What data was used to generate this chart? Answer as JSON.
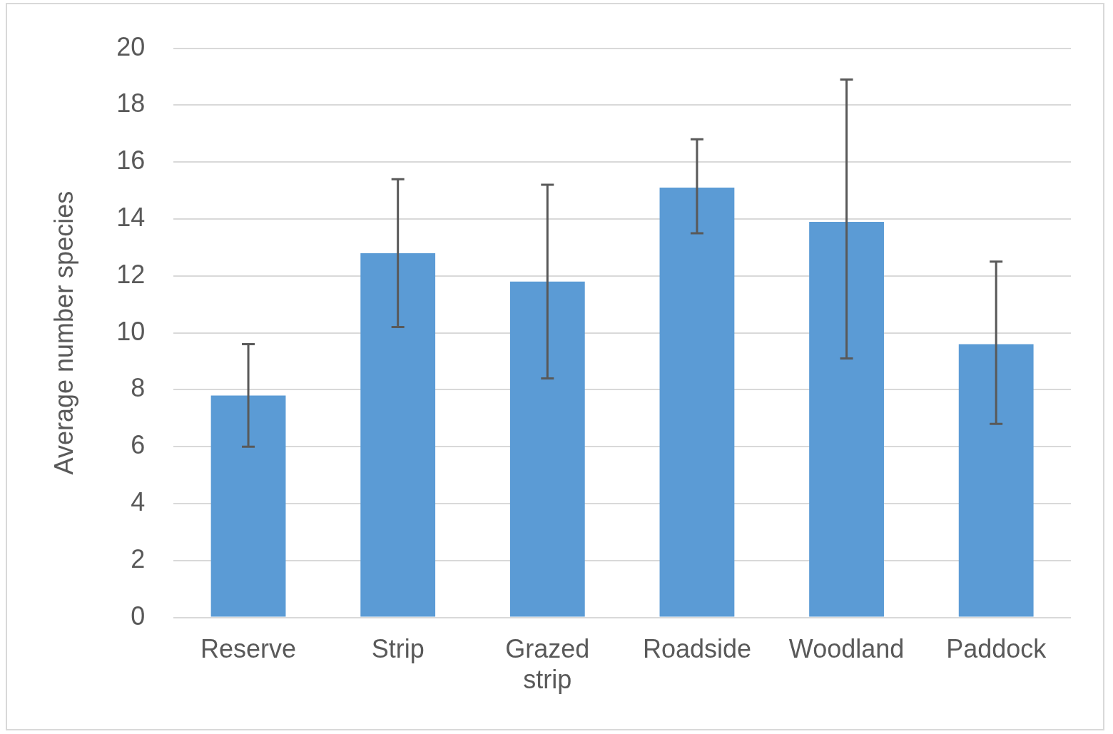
{
  "chart_data": {
    "type": "bar",
    "ylabel": "Average number species",
    "categories": [
      "Reserve",
      "Strip",
      "Grazed strip",
      "Roadside",
      "Woodland",
      "Paddock"
    ],
    "values": [
      7.8,
      12.8,
      11.8,
      15.1,
      13.9,
      9.6
    ],
    "errors": [
      [
        6.0,
        9.6
      ],
      [
        10.2,
        15.4
      ],
      [
        8.4,
        15.2
      ],
      [
        13.5,
        16.8
      ],
      [
        9.1,
        18.9
      ],
      [
        6.8,
        12.5
      ]
    ],
    "color": "#5b9bd5",
    "ylim": [
      0,
      20
    ],
    "yticks": [
      0,
      2,
      4,
      6,
      8,
      10,
      12,
      14,
      16,
      18,
      20
    ],
    "grid": "y",
    "legend": false
  }
}
